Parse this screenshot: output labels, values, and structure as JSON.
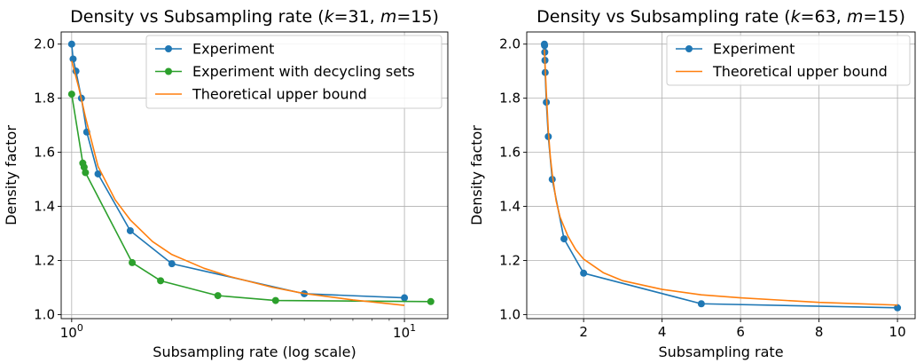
{
  "colors": {
    "experiment": "#1f77b4",
    "decycling": "#2ca02c",
    "bound": "#ff7f0e",
    "grid": "#b0b0b0"
  },
  "chart_data": [
    {
      "type": "line",
      "title": "Density vs Subsampling rate (k=31, m=15)",
      "title_parts": [
        "Density vs Subsampling rate (",
        "k",
        "=31, ",
        "m",
        "=15)"
      ],
      "xlabel": "Subsampling rate (log scale)",
      "ylabel": "Density factor",
      "xscale": "log",
      "xlim": [
        0.93,
        13.5
      ],
      "ylim": [
        0.985,
        2.045
      ],
      "xticks": [
        1,
        10
      ],
      "xtick_labels": [
        [
          "10",
          "0"
        ],
        [
          "10",
          "1"
        ]
      ],
      "yticks": [
        1.0,
        1.2,
        1.4,
        1.6,
        1.8,
        2.0
      ],
      "ytick_labels": [
        "1.0",
        "1.2",
        "1.4",
        "1.6",
        "1.8",
        "2.0"
      ],
      "grid": true,
      "legend_position": "top-right",
      "series": [
        {
          "name": "Experiment",
          "color": "#1f77b4",
          "markers": true,
          "x": [
            1.0,
            1.01,
            1.03,
            1.07,
            1.11,
            1.2,
            1.5,
            2.0,
            5.0,
            10.0
          ],
          "y": [
            2.0,
            1.945,
            1.9,
            1.8,
            1.675,
            1.52,
            1.31,
            1.188,
            1.077,
            1.062
          ]
        },
        {
          "name": "Experiment with decycling sets",
          "color": "#2ca02c",
          "markers": true,
          "x": [
            1.0,
            1.08,
            1.09,
            1.1,
            1.52,
            1.85,
            2.75,
            4.1,
            12.0
          ],
          "y": [
            1.815,
            1.56,
            1.545,
            1.525,
            1.192,
            1.125,
            1.07,
            1.052,
            1.048
          ]
        },
        {
          "name": "Theoretical upper bound",
          "color": "#ff7f0e",
          "markers": false,
          "x": [
            1.0,
            1.05,
            1.1,
            1.2,
            1.35,
            1.5,
            1.75,
            2.0,
            2.5,
            3.0,
            4.0,
            5.0,
            7.0,
            10.0
          ],
          "y": [
            1.938,
            1.84,
            1.73,
            1.548,
            1.425,
            1.35,
            1.27,
            1.222,
            1.171,
            1.14,
            1.101,
            1.078,
            1.054,
            1.034
          ]
        }
      ]
    },
    {
      "type": "line",
      "title": "Density vs Subsampling rate (k=63, m=15)",
      "title_parts": [
        "Density vs Subsampling rate (",
        "k",
        "=63, ",
        "m",
        "=15)"
      ],
      "xlabel": "Subsampling rate",
      "ylabel": "Density factor",
      "xscale": "linear",
      "xlim": [
        0.55,
        10.45
      ],
      "ylim": [
        0.985,
        2.045
      ],
      "xticks": [
        2,
        4,
        6,
        8,
        10
      ],
      "xtick_labels": [
        "2",
        "4",
        "6",
        "8",
        "10"
      ],
      "yticks": [
        1.0,
        1.2,
        1.4,
        1.6,
        1.8,
        2.0
      ],
      "ytick_labels": [
        "1.0",
        "1.2",
        "1.4",
        "1.6",
        "1.8",
        "2.0"
      ],
      "grid": true,
      "legend_position": "top-right",
      "series": [
        {
          "name": "Experiment",
          "color": "#1f77b4",
          "markers": true,
          "x": [
            1.0,
            1.005,
            1.01,
            1.015,
            1.02,
            1.05,
            1.1,
            1.2,
            1.5,
            2.0,
            5.0,
            10.0
          ],
          "y": [
            2.0,
            1.995,
            1.97,
            1.94,
            1.895,
            1.785,
            1.658,
            1.5,
            1.28,
            1.153,
            1.04,
            1.025
          ]
        },
        {
          "name": "Theoretical upper bound",
          "color": "#ff7f0e",
          "markers": false,
          "x": [
            1.0,
            1.05,
            1.1,
            1.15,
            1.2,
            1.3,
            1.4,
            1.6,
            1.8,
            2.0,
            2.5,
            3.0,
            4.0,
            5.0,
            6.0,
            8.0,
            10.0
          ],
          "y": [
            1.98,
            1.82,
            1.68,
            1.585,
            1.52,
            1.42,
            1.36,
            1.29,
            1.24,
            1.205,
            1.155,
            1.125,
            1.093,
            1.073,
            1.062,
            1.045,
            1.035
          ]
        }
      ]
    }
  ]
}
